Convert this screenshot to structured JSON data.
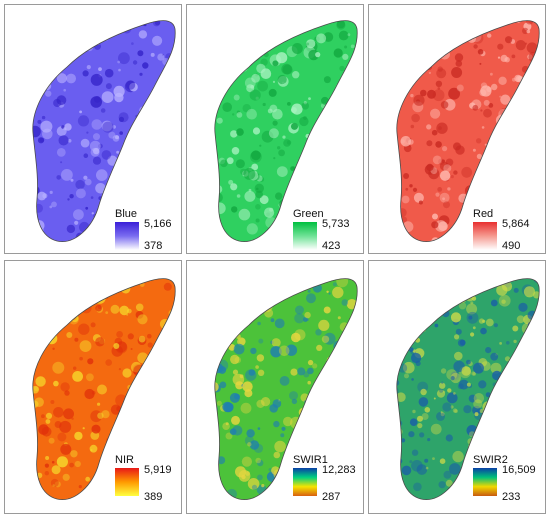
{
  "panels": [
    {
      "band": "Blue",
      "max": "5,166",
      "min": "378",
      "ramp": [
        "#3a1fd8",
        "#7a6cf0",
        "#ffffff"
      ],
      "base": "#6a5ef0",
      "light": "#b9b2ff",
      "dark": "#3524c9"
    },
    {
      "band": "Green",
      "max": "5,733",
      "min": "423",
      "ramp": [
        "#00c040",
        "#6fe296",
        "#ffffff"
      ],
      "base": "#2fd060",
      "light": "#a8f2c0",
      "dark": "#12a840"
    },
    {
      "band": "Red",
      "max": "5,864",
      "min": "490",
      "ramp": [
        "#e83030",
        "#f59a90",
        "#ffffff"
      ],
      "base": "#f05a4a",
      "light": "#ffb8ae",
      "dark": "#c92a22"
    },
    {
      "band": "NIR",
      "max": "5,919",
      "min": "389",
      "ramp": [
        "#e81818",
        "#ff9a00",
        "#ffff40"
      ],
      "base": "#f46a10",
      "light": "#f6d62a",
      "dark": "#e0300a"
    },
    {
      "band": "SWIR1",
      "max": "12,283",
      "min": "287",
      "ramp": [
        "#0a3fa6",
        "#00d080",
        "#f6e400",
        "#d86010"
      ],
      "base": "#4cc23a",
      "light": "#e6d640",
      "dark": "#1f7fb0"
    },
    {
      "band": "SWIR2",
      "max": "16,509",
      "min": "233",
      "ramp": [
        "#0a3fa6",
        "#00c07a",
        "#f0d800",
        "#c85a10"
      ],
      "base": "#2ea46a",
      "light": "#c8d84a",
      "dark": "#1a5fa6"
    }
  ]
}
